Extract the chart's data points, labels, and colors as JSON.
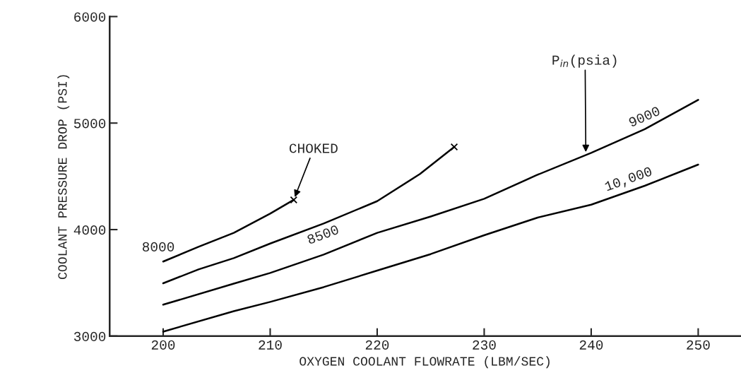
{
  "chart_data": {
    "type": "line",
    "xlabel": "OXYGEN COOLANT FLOWRATE (LBM/SEC)",
    "ylabel": "COOLANT PRESSURE DROP (PSI)",
    "xlim": [
      195,
      254
    ],
    "ylim": [
      3000,
      6000
    ],
    "xticks": [
      200,
      210,
      220,
      230,
      240,
      250
    ],
    "yticks": [
      3000,
      4000,
      5000,
      6000
    ],
    "grid": false,
    "legend": false,
    "marker": "none",
    "line_style": "solid",
    "series": [
      {
        "name": "8000",
        "color": "#000000",
        "x": [
          200,
          203.3,
          206.6,
          210,
          212.2
        ],
        "values": [
          3700,
          3838,
          3969,
          4150,
          4279
        ]
      },
      {
        "name": "8500",
        "color": "#000000",
        "x": [
          200,
          203.3,
          206.6,
          210,
          215,
          220,
          224,
          227.2
        ],
        "values": [
          3496,
          3626,
          3732,
          3869,
          4057,
          4267,
          4522,
          4776
        ]
      },
      {
        "name": "9000",
        "color": "#000000",
        "x": [
          200,
          206.6,
          210,
          215,
          220,
          225,
          230,
          234.9,
          240,
          245,
          250
        ],
        "values": [
          3295,
          3493,
          3593,
          3765,
          3969,
          4123,
          4289,
          4511,
          4721,
          4942,
          5218
        ]
      },
      {
        "name": "10,000",
        "color": "#000000",
        "x": [
          200,
          206.6,
          210,
          215,
          220,
          225,
          230,
          235,
          240,
          245,
          250
        ],
        "values": [
          3042,
          3234,
          3321,
          3460,
          3615,
          3770,
          3947,
          4113,
          4234,
          4411,
          4610
        ]
      },
      {
        "type": "scatter",
        "marker": "cross",
        "color": "#000000",
        "x": [
          212.2,
          227.2
        ],
        "values": [
          4279,
          4776
        ]
      }
    ],
    "annotations": [
      {
        "text": "CHOKED",
        "x": 212.2,
        "y": 4279
      },
      "P$_{in}$(psia)"
    ]
  }
}
